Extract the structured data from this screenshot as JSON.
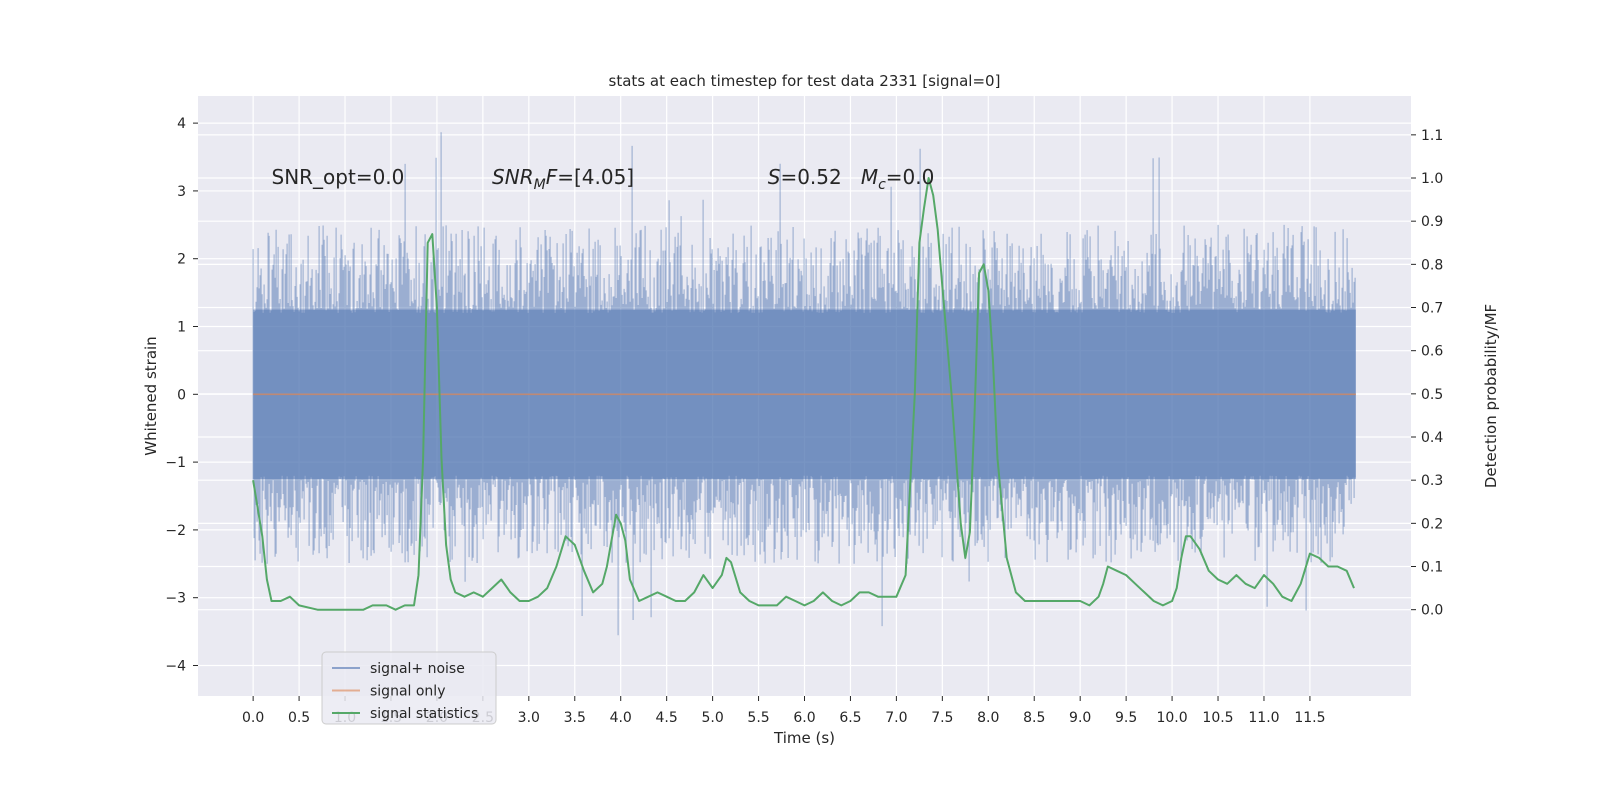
{
  "chart_data": {
    "type": "line",
    "title": "stats at each timestep for test data 2331 [signal=0]",
    "xlabel": "Time (s)",
    "ylabel": "Whitened strain",
    "ylabel_right": "Detection probability/MF",
    "xlim": [
      -0.6,
      12.6
    ],
    "ylim": [
      -4.45,
      4.4
    ],
    "ylim_right": [
      -0.2,
      1.19
    ],
    "x_ticks": [
      0.0,
      0.5,
      1.0,
      1.5,
      2.0,
      2.5,
      3.0,
      3.5,
      4.0,
      4.5,
      5.0,
      5.5,
      6.0,
      6.5,
      7.0,
      7.5,
      8.0,
      8.5,
      9.0,
      9.5,
      10.0,
      10.5,
      11.0,
      11.5
    ],
    "x_tick_labels": [
      "0.0",
      "0.5",
      "1.0",
      "1.5",
      "2.0",
      "2.5",
      "3.0",
      "3.5",
      "4.0",
      "4.5",
      "5.0",
      "5.5",
      "6.0",
      "6.5",
      "7.0",
      "7.5",
      "8.0",
      "8.5",
      "9.0",
      "9.5",
      "10.0",
      "10.5",
      "11.0",
      "11.5"
    ],
    "y_ticks": [
      -4,
      -3,
      -2,
      -1,
      0,
      1,
      2,
      3,
      4
    ],
    "y_tick_labels": [
      "−4",
      "−3",
      "−2",
      "−1",
      "0",
      "1",
      "2",
      "3",
      "4"
    ],
    "y_right_ticks": [
      0.0,
      0.1,
      0.2,
      0.3,
      0.4,
      0.5,
      0.6,
      0.7,
      0.8,
      0.9,
      1.0,
      1.1
    ],
    "y_right_tick_labels": [
      "0.0",
      "0.1",
      "0.2",
      "0.3",
      "0.4",
      "0.5",
      "0.6",
      "0.7",
      "0.8",
      "0.9",
      "1.0",
      "1.1"
    ],
    "grid": true,
    "background": "#eaeaf2",
    "annotations": [
      {
        "text": "SNR_opt=0.0",
        "x": 0.2,
        "y": 3.1
      },
      {
        "text": "SNR_MF=[4.05]",
        "x": 2.6,
        "y": 3.1
      },
      {
        "text": "S=0.52   M_c=0.0",
        "x": 5.6,
        "y": 3.1
      }
    ],
    "legend": {
      "position": "lower-left",
      "entries": [
        "signal+ noise",
        "signal only",
        "signal statistics"
      ]
    },
    "series": [
      {
        "name": "signal+ noise",
        "color": "#4c72b0",
        "opacity": 0.5,
        "axis": "left",
        "kind": "noise",
        "t_range": [
          0.0,
          12.0
        ],
        "envelope": {
          "typical_high": 1.9,
          "typical_low": -1.9,
          "peak_high": 3.9,
          "peak_low": -3.8
        }
      },
      {
        "name": "signal only",
        "color": "#dd8452",
        "axis": "left",
        "x": [
          0.0,
          12.0
        ],
        "y": [
          0.0,
          0.0
        ]
      },
      {
        "name": "signal statistics",
        "color": "#55a868",
        "axis": "right",
        "x": [
          0.0,
          0.1,
          0.15,
          0.2,
          0.3,
          0.4,
          0.5,
          0.7,
          0.9,
          1.0,
          1.1,
          1.2,
          1.3,
          1.45,
          1.55,
          1.65,
          1.75,
          1.8,
          1.85,
          1.9,
          1.95,
          2.0,
          2.05,
          2.1,
          2.15,
          2.2,
          2.3,
          2.4,
          2.5,
          2.6,
          2.7,
          2.8,
          2.9,
          3.0,
          3.1,
          3.2,
          3.3,
          3.4,
          3.5,
          3.6,
          3.7,
          3.8,
          3.85,
          3.9,
          3.95,
          4.0,
          4.05,
          4.1,
          4.2,
          4.3,
          4.4,
          4.5,
          4.6,
          4.7,
          4.8,
          4.9,
          5.0,
          5.1,
          5.15,
          5.2,
          5.3,
          5.4,
          5.5,
          5.6,
          5.7,
          5.8,
          5.9,
          6.0,
          6.1,
          6.2,
          6.3,
          6.4,
          6.5,
          6.6,
          6.7,
          6.8,
          6.9,
          7.0,
          7.1,
          7.2,
          7.25,
          7.3,
          7.35,
          7.4,
          7.45,
          7.5,
          7.6,
          7.7,
          7.75,
          7.8,
          7.85,
          7.9,
          7.95,
          8.0,
          8.05,
          8.1,
          8.2,
          8.3,
          8.4,
          8.5,
          8.7,
          8.9,
          9.0,
          9.1,
          9.2,
          9.25,
          9.3,
          9.4,
          9.5,
          9.6,
          9.7,
          9.8,
          9.9,
          10.0,
          10.05,
          10.1,
          10.15,
          10.2,
          10.3,
          10.4,
          10.5,
          10.6,
          10.7,
          10.8,
          10.9,
          11.0,
          11.1,
          11.2,
          11.3,
          11.4,
          11.5,
          11.6,
          11.7,
          11.8,
          11.9,
          11.98
        ],
        "y": [
          0.3,
          0.17,
          0.07,
          0.02,
          0.02,
          0.03,
          0.01,
          0.0,
          0.0,
          0.0,
          0.0,
          0.0,
          0.01,
          0.01,
          0.0,
          0.01,
          0.01,
          0.08,
          0.35,
          0.85,
          0.87,
          0.7,
          0.35,
          0.15,
          0.07,
          0.04,
          0.03,
          0.04,
          0.03,
          0.05,
          0.07,
          0.04,
          0.02,
          0.02,
          0.03,
          0.05,
          0.1,
          0.17,
          0.15,
          0.09,
          0.04,
          0.06,
          0.1,
          0.16,
          0.22,
          0.2,
          0.16,
          0.07,
          0.02,
          0.03,
          0.04,
          0.03,
          0.02,
          0.02,
          0.04,
          0.08,
          0.05,
          0.08,
          0.12,
          0.11,
          0.04,
          0.02,
          0.01,
          0.01,
          0.01,
          0.03,
          0.02,
          0.01,
          0.02,
          0.04,
          0.02,
          0.01,
          0.02,
          0.04,
          0.04,
          0.03,
          0.03,
          0.03,
          0.08,
          0.5,
          0.85,
          0.93,
          1.0,
          0.96,
          0.88,
          0.75,
          0.5,
          0.2,
          0.12,
          0.18,
          0.45,
          0.78,
          0.8,
          0.74,
          0.58,
          0.35,
          0.12,
          0.04,
          0.02,
          0.02,
          0.02,
          0.02,
          0.02,
          0.01,
          0.03,
          0.06,
          0.1,
          0.09,
          0.08,
          0.06,
          0.04,
          0.02,
          0.01,
          0.02,
          0.05,
          0.12,
          0.17,
          0.17,
          0.14,
          0.09,
          0.07,
          0.06,
          0.08,
          0.06,
          0.05,
          0.08,
          0.06,
          0.03,
          0.02,
          0.06,
          0.13,
          0.12,
          0.1,
          0.1,
          0.09,
          0.05
        ]
      }
    ]
  }
}
